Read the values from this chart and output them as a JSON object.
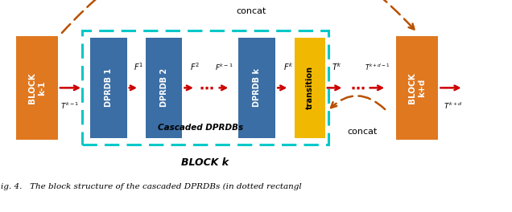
{
  "fig_width": 6.36,
  "fig_height": 2.64,
  "dpi": 100,
  "bg_color": "#ffffff",
  "orange_color": "#E07820",
  "blue_color": "#3A6EA5",
  "yellow_color": "#F0B800",
  "cyan_border": "#00C8C8",
  "red_arrow": "#CC0000",
  "dashed_color": "#B85000",
  "caption": "ig. 4.   The block structure of the cascaded DPRDBs (in dotted rectangl",
  "concat_top": "concat",
  "concat_bottom": "concat",
  "cascaded_label": "Cascaded DPRDBs",
  "block_k_label": "BLOCK k",
  "xlim": [
    0,
    10
  ],
  "ylim": [
    0,
    3.5
  ]
}
